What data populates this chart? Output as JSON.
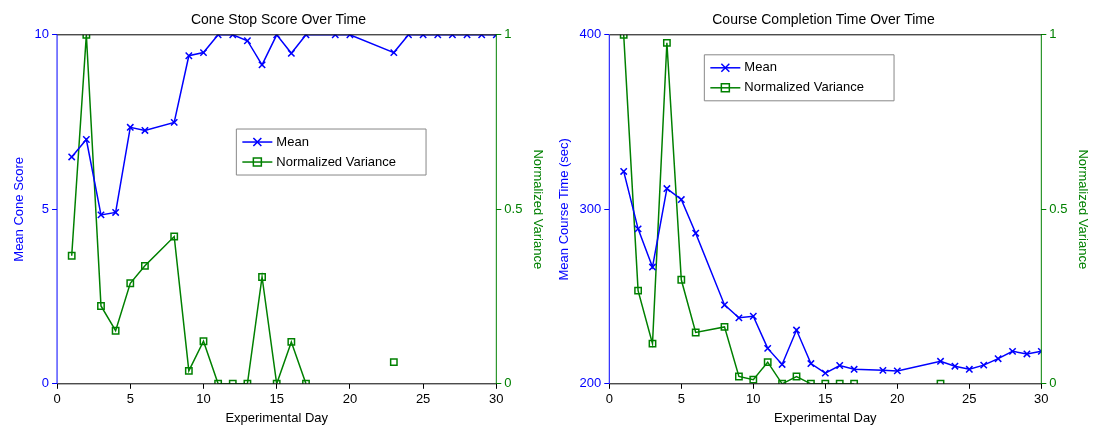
{
  "chart_data": [
    {
      "type": "line",
      "title": "Cone Stop Score Over Time",
      "xlabel": "Experimental Day",
      "ylabel": "Mean Cone Score",
      "y2label": "Normalized Variance",
      "xlim": [
        0,
        30
      ],
      "xticks": [
        0,
        5,
        10,
        15,
        20,
        25,
        30
      ],
      "ylim": [
        0,
        10
      ],
      "yticks": [
        0,
        5,
        10
      ],
      "y2lim": [
        0,
        1
      ],
      "y2ticks": [
        0,
        0.5,
        1
      ],
      "grid": false,
      "legend": "right",
      "series": [
        {
          "name": "Mean",
          "color": "#0000ff",
          "marker": "cross",
          "x": [
            1,
            2,
            3,
            4,
            5,
            6,
            8,
            9,
            10,
            11,
            12,
            13,
            14,
            15,
            16,
            17,
            19,
            20,
            23,
            24,
            25,
            26,
            27,
            28,
            29,
            30
          ],
          "values": [
            6.5,
            7.0,
            4.84,
            4.91,
            7.35,
            7.26,
            7.49,
            9.4,
            9.49,
            10,
            10,
            9.83,
            9.14,
            10,
            9.47,
            10,
            10,
            10,
            9.49,
            10,
            10,
            10,
            10,
            10,
            10,
            10
          ]
        },
        {
          "name": "Normalized Variance",
          "color": "#008000",
          "marker": "square",
          "axis": "y2",
          "x": [
            1,
            2,
            3,
            4,
            5,
            6,
            8,
            9,
            10,
            11,
            12,
            13,
            14,
            15,
            16,
            17,
            19,
            23
          ],
          "values": [
            0.367,
            1,
            0.223,
            0.152,
            0.288,
            0.338,
            0.422,
            0.037,
            0.122,
            0,
            0,
            0,
            0.306,
            0,
            0.12,
            0,
            null,
            0.062
          ]
        }
      ]
    },
    {
      "type": "line",
      "title": "Course Completion Time Over Time",
      "xlabel": "Experimental Day",
      "ylabel": "Mean Course Time (sec)",
      "y2label": "Normalized Variance",
      "xlim": [
        0,
        30
      ],
      "xticks": [
        0,
        5,
        10,
        15,
        20,
        25,
        30
      ],
      "ylim": [
        200,
        400
      ],
      "yticks": [
        200,
        300,
        400
      ],
      "y2lim": [
        0,
        1
      ],
      "y2ticks": [
        0,
        0.5,
        1
      ],
      "grid": false,
      "legend": "top left",
      "series": [
        {
          "name": "Mean",
          "color": "#0000ff",
          "marker": "cross",
          "x": [
            1,
            2,
            3,
            4,
            5,
            6,
            8,
            9,
            10,
            11,
            12,
            13,
            14,
            15,
            16,
            17,
            19,
            20,
            23,
            24,
            25,
            26,
            27,
            28,
            29,
            30
          ],
          "values": [
            321.7,
            288.8,
            266.9,
            311.9,
            305.6,
            286.3,
            245.2,
            237.8,
            238.7,
            220.3,
            211.1,
            230.8,
            211.6,
            206.1,
            210.5,
            208.3,
            207.7,
            207.4,
            212.9,
            210.1,
            208.3,
            210.7,
            214.4,
            218.6,
            217.1,
            218.6
          ]
        },
        {
          "name": "Normalized Variance",
          "color": "#008000",
          "marker": "square",
          "axis": "y2",
          "x": [
            1,
            2,
            3,
            4,
            5,
            6,
            8,
            9,
            10,
            11,
            12,
            13,
            14,
            15,
            16,
            17,
            19,
            23
          ],
          "values": [
            1,
            0.267,
            0.115,
            0.977,
            0.298,
            0.147,
            0.163,
            0.021,
            0.012,
            0.062,
            0,
            0.021,
            0,
            0,
            0,
            0,
            null,
            0
          ]
        }
      ]
    }
  ]
}
